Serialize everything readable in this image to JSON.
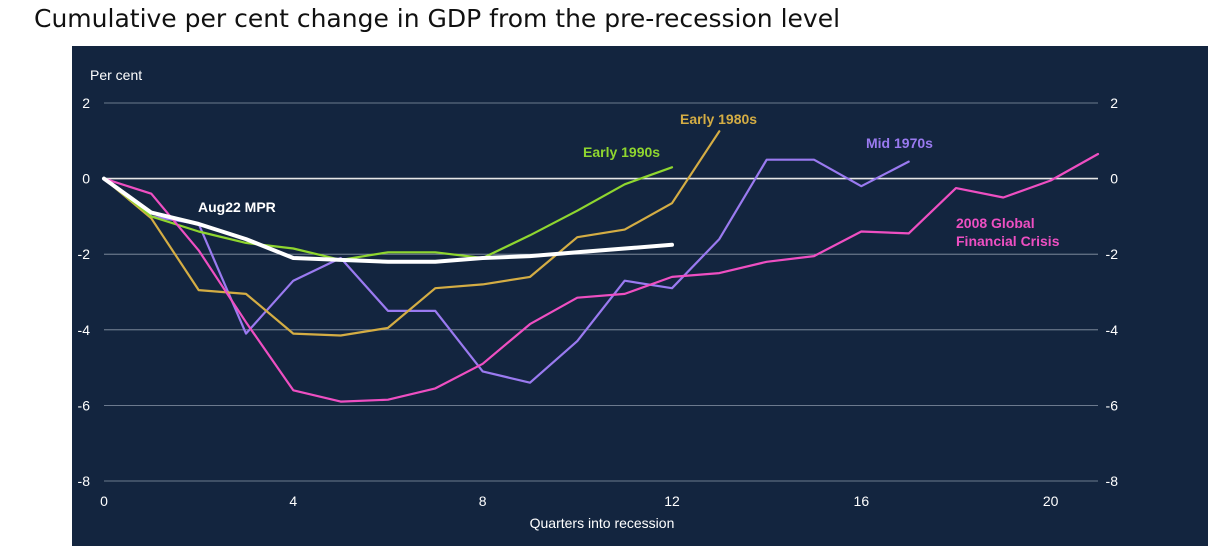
{
  "page": {
    "title": "Cumulative per cent change in GDP from the pre-recession level"
  },
  "colors": {
    "background": "#13253f",
    "grid": "#8a97a8",
    "zero_line": "#e6e6e6",
    "text": "#ffffff"
  },
  "chart_data": {
    "type": "line",
    "title": "Cumulative per cent change in GDP from the pre-recession level",
    "xlabel": "Quarters into recession",
    "ylabel": "Per cent",
    "xlim": [
      0,
      21
    ],
    "ylim": [
      -8,
      2
    ],
    "x_ticks": [
      0,
      4,
      8,
      12,
      16,
      20
    ],
    "y_ticks": [
      2,
      0,
      -2,
      -4,
      -6,
      -8
    ],
    "grid": true,
    "series": [
      {
        "name": "Mid 1970s",
        "label_lines": [
          "Mid 1970s"
        ],
        "color": "#9a7af0",
        "line_width": 2.2,
        "x": [
          0,
          1,
          2,
          3,
          4,
          5,
          6,
          7,
          8,
          9,
          10,
          11,
          12,
          13,
          14,
          15,
          16,
          17
        ],
        "values": [
          0,
          -1.0,
          -1.2,
          -4.1,
          -2.7,
          -2.1,
          -3.5,
          -3.5,
          -5.1,
          -5.4,
          -4.3,
          -2.7,
          -2.9,
          -1.6,
          0.5,
          0.5,
          -0.2,
          0.45
        ]
      },
      {
        "name": "Early 1980s",
        "label_lines": [
          "Early 1980s"
        ],
        "color": "#d4ad44",
        "line_width": 2.2,
        "x": [
          0,
          1,
          2,
          3,
          4,
          5,
          6,
          7,
          8,
          9,
          10,
          11,
          12,
          13
        ],
        "values": [
          0,
          -1.05,
          -2.95,
          -3.05,
          -4.1,
          -4.15,
          -3.95,
          -2.9,
          -2.8,
          -2.6,
          -1.55,
          -1.35,
          -0.65,
          1.25
        ]
      },
      {
        "name": "Early 1990s",
        "label_lines": [
          "Early 1990s"
        ],
        "color": "#8fd62f",
        "line_width": 2.2,
        "x": [
          0,
          1,
          2,
          3,
          4,
          5,
          6,
          7,
          8,
          9,
          10,
          11,
          12
        ],
        "values": [
          0,
          -1.0,
          -1.4,
          -1.7,
          -1.85,
          -2.15,
          -1.95,
          -1.95,
          -2.1,
          -1.5,
          -0.85,
          -0.15,
          0.3
        ]
      },
      {
        "name": "2008 Global Financial Crisis",
        "label_lines": [
          "2008 Global",
          "Financial Crisis"
        ],
        "color": "#ee4fc2",
        "line_width": 2.2,
        "x": [
          0,
          1,
          2,
          3,
          4,
          5,
          6,
          7,
          8,
          9,
          10,
          11,
          12,
          13,
          14,
          15,
          16,
          17,
          18,
          19,
          20,
          21
        ],
        "values": [
          0,
          -0.4,
          -1.9,
          -3.8,
          -5.6,
          -5.9,
          -5.85,
          -5.55,
          -4.9,
          -3.85,
          -3.15,
          -3.05,
          -2.6,
          -2.5,
          -2.2,
          -2.05,
          -1.4,
          -1.45,
          -0.25,
          -0.5,
          -0.05,
          0.65
        ]
      },
      {
        "name": "Aug22 MPR",
        "label_lines": [
          "Aug22 MPR"
        ],
        "color": "#ffffff",
        "line_width": 4,
        "x": [
          0,
          1,
          2,
          3,
          4,
          5,
          6,
          7,
          8,
          9,
          10,
          11,
          12
        ],
        "values": [
          0,
          -0.9,
          -1.2,
          -1.6,
          -2.1,
          -2.15,
          -2.2,
          -2.2,
          -2.1,
          -2.05,
          -1.95,
          -1.85,
          -1.75
        ]
      }
    ]
  }
}
